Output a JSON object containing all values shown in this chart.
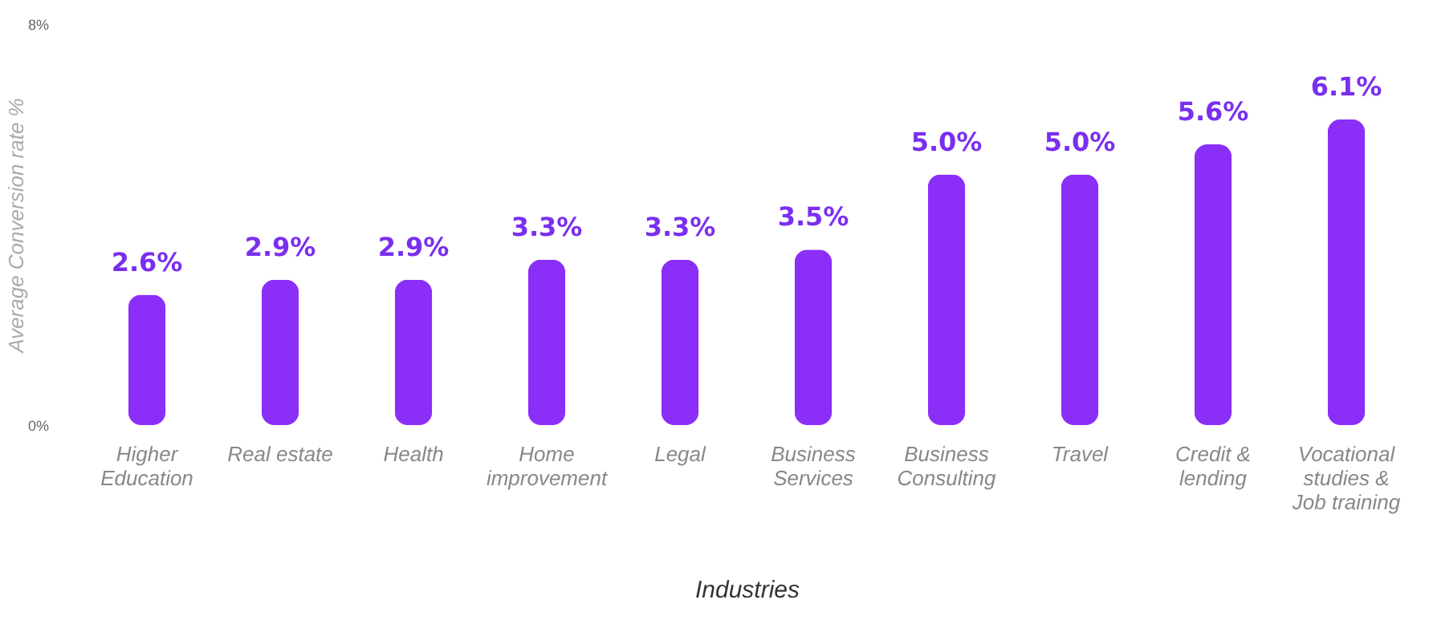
{
  "chart_data": {
    "type": "bar",
    "categories": [
      "Higher Education",
      "Real estate",
      "Health",
      "Home improvement",
      "Legal",
      "Business Services",
      "Business Consulting",
      "Travel",
      "Credit & lending",
      "Vocational studies & Job training"
    ],
    "values": [
      2.6,
      2.9,
      2.9,
      3.3,
      3.3,
      3.5,
      5.0,
      5.0,
      5.6,
      6.1
    ],
    "value_labels": [
      "2.6%",
      "2.9%",
      "2.9%",
      "3.3%",
      "3.3%",
      "3.5%",
      "5.0%",
      "5.0%",
      "5.6%",
      "6.1%"
    ],
    "color": "#8a2ef8",
    "ylim": [
      0,
      8
    ],
    "yticks": [
      {
        "value": 0,
        "label": "0%"
      },
      {
        "value": 8,
        "label": "8%"
      }
    ],
    "ylabel": "Average Conversion rate %",
    "xlabel": "Industries",
    "grid": false
  }
}
